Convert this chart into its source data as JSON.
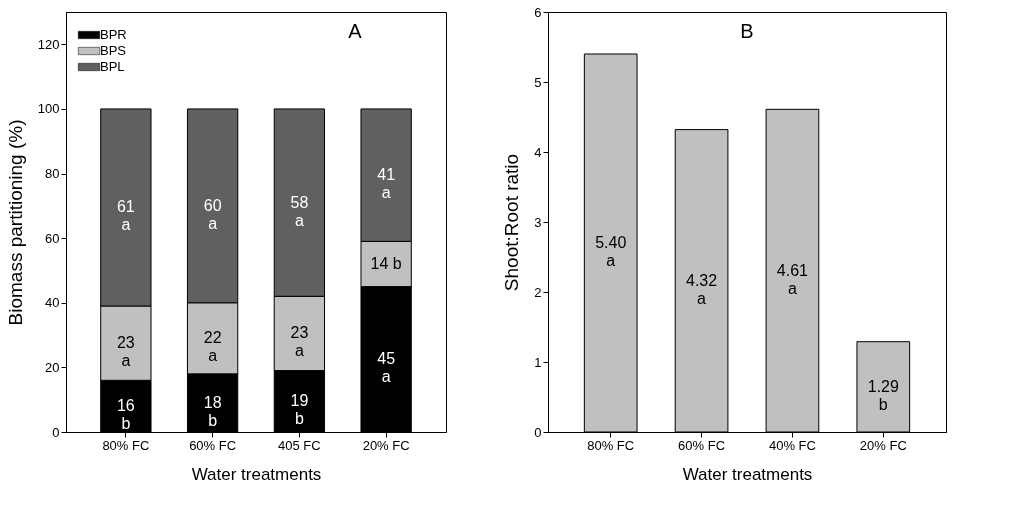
{
  "chart_data": [
    {
      "type": "bar",
      "stacked": true,
      "title": "A",
      "xlabel": "Water treatments",
      "ylabel": "Biomass partitioning (%)",
      "categories": [
        "80% FC",
        "60% FC",
        "405 FC",
        "20% FC"
      ],
      "series": [
        {
          "name": "BPR",
          "color": "#000000",
          "values": [
            16,
            18,
            19,
            45
          ],
          "value_labels": [
            "16\nb",
            "18\nb",
            "19\nb",
            "45\na"
          ]
        },
        {
          "name": "BPS",
          "color": "#c0c0c0",
          "values": [
            23,
            22,
            23,
            14
          ],
          "value_labels": [
            "23\na",
            "22\na",
            "23\na",
            "14 b"
          ]
        },
        {
          "name": "BPL",
          "color": "#606060",
          "values": [
            61,
            60,
            58,
            41
          ],
          "value_labels": [
            "61\na",
            "60\na",
            "58\na",
            "41\na"
          ]
        }
      ],
      "ylim": [
        0,
        130
      ],
      "yticks": [
        0,
        20,
        40,
        60,
        80,
        100,
        120
      ],
      "legend": "top left",
      "grid": false
    },
    {
      "type": "bar",
      "title": "B",
      "xlabel": "Water treatments",
      "ylabel": "Shoot:Root ratio",
      "categories": [
        "80% FC",
        "60% FC",
        "40% FC",
        "20% FC"
      ],
      "values": [
        5.4,
        4.32,
        4.61,
        1.29
      ],
      "value_labels": [
        "5.40\na",
        "4.32\na",
        "4.61\na",
        "1.29\nb"
      ],
      "color": "#c0c0c0",
      "ylim": [
        0,
        6
      ],
      "yticks": [
        0,
        1,
        2,
        3,
        4,
        5,
        6
      ],
      "grid": false
    }
  ]
}
